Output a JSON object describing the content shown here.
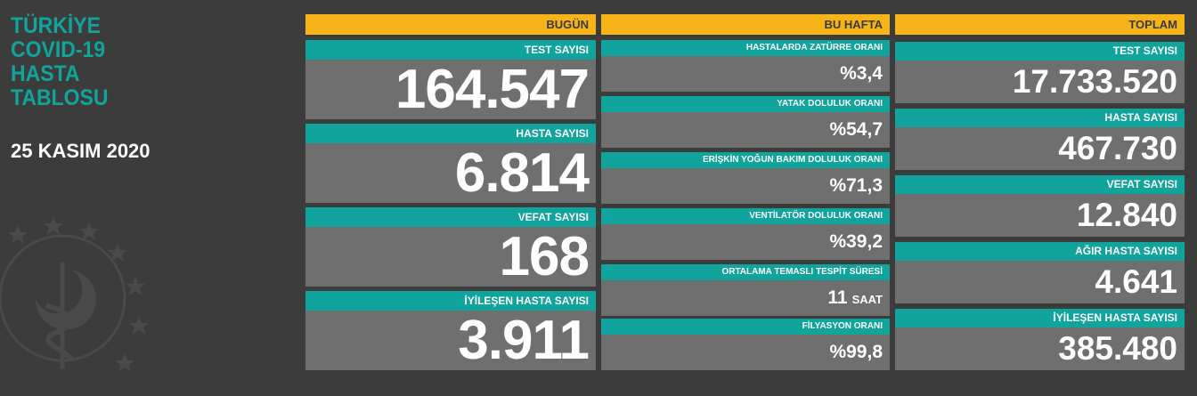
{
  "title_lines": [
    "TÜRKİYE",
    "COVID-19",
    "HASTA",
    "TABLOSU"
  ],
  "date": "25 KASIM 2020",
  "colors": {
    "background": "#3c3c3c",
    "header": "#f7b418",
    "label": "#10a49c",
    "value_box": "#6f6f6f",
    "title": "#10a49c"
  },
  "today": {
    "header": "BUGÜN",
    "cards": [
      {
        "label": "TEST SAYISI",
        "value": "164.547"
      },
      {
        "label": "HASTA SAYISI",
        "value": "6.814"
      },
      {
        "label": "VEFAT SAYISI",
        "value": "168"
      },
      {
        "label": "İYİLEŞEN HASTA SAYISI",
        "value": "3.911"
      }
    ]
  },
  "this_week": {
    "header": "BU HAFTA",
    "cards": [
      {
        "label": "HASTALARDA ZATÜRRE ORANI",
        "value": "%3,4",
        "unit": ""
      },
      {
        "label": "YATAK DOLULUK ORANI",
        "value": "%54,7",
        "unit": ""
      },
      {
        "label": "ERİŞKİN YOĞUN BAKIM DOLULUK ORANI",
        "value": "%71,3",
        "unit": ""
      },
      {
        "label": "VENTİLATÖR DOLULUK ORANI",
        "value": "%39,2",
        "unit": ""
      },
      {
        "label": "ORTALAMA TEMASLI TESPİT SÜRESİ",
        "value": "11",
        "unit": "SAAT"
      },
      {
        "label": "FİLYASYON ORANI",
        "value": "%99,8",
        "unit": ""
      }
    ]
  },
  "total": {
    "header": "TOPLAM",
    "cards": [
      {
        "label": "TEST SAYISI",
        "value": "17.733.520"
      },
      {
        "label": "HASTA SAYISI",
        "value": "467.730"
      },
      {
        "label": "VEFAT SAYISI",
        "value": "12.840"
      },
      {
        "label": "AĞIR HASTA SAYISI",
        "value": "4.641"
      },
      {
        "label": "İYİLEŞEN HASTA SAYISI",
        "value": "385.480"
      }
    ]
  }
}
